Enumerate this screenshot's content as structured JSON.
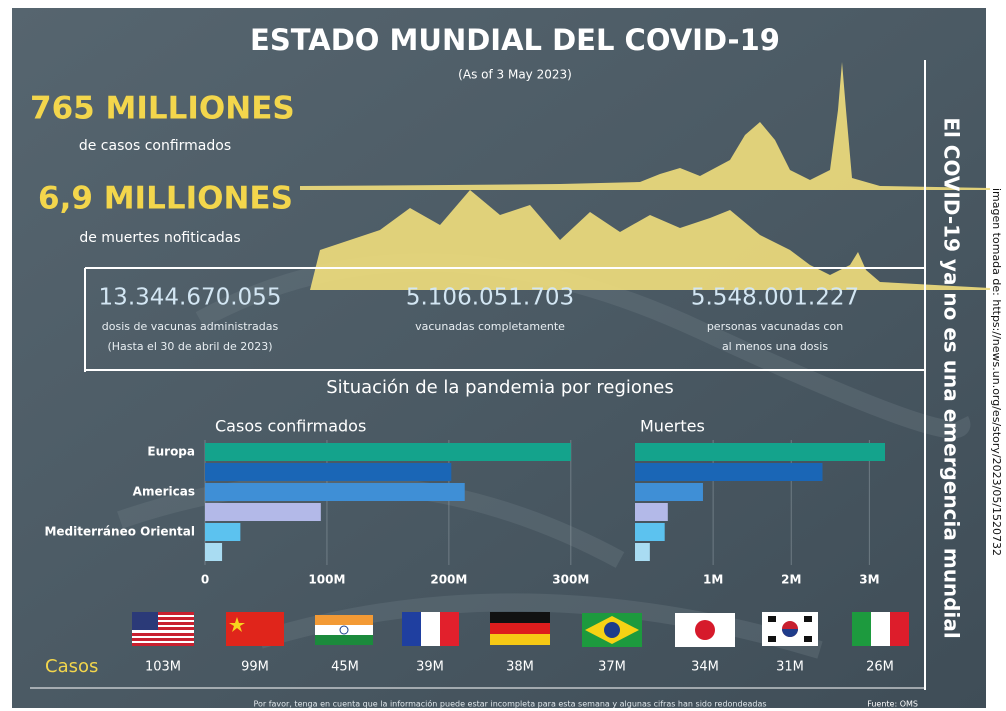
{
  "header": {
    "title": "ESTADO MUNDIAL DEL COVID-19",
    "date": "(As of 3 May 2023)"
  },
  "headline": [
    {
      "value": "765 MILLIONES",
      "label": "de casos confirmados"
    },
    {
      "value": "6,9 MILLIONES",
      "label": "de muertes nofiticadas"
    }
  ],
  "vaccines": [
    {
      "value": "13.344.670.055",
      "lines": [
        "dosis de vacunas administradas",
        "(Hasta el 30 de abril de 2023)"
      ]
    },
    {
      "value": "5.106.051.703",
      "lines": [
        "vacunadas completamente"
      ]
    },
    {
      "value": "5.548.001.227",
      "lines": [
        "personas vacunadas con",
        "al menos una dosis"
      ]
    }
  ],
  "section_title": "Situación de la pandemia por regiones",
  "chart_data": [
    {
      "type": "bar",
      "orientation": "horizontal",
      "title": "Casos confirmados",
      "categories": [
        "Europa",
        null,
        "Americas",
        null,
        "Mediterráneo Oriental",
        null
      ],
      "values": [
        300,
        202,
        213,
        95,
        29,
        14
      ],
      "colors": [
        "#14a38c",
        "#1a66b6",
        "#3f8fd6",
        "#b3b9e8",
        "#5cc2ef",
        "#a9dcf2"
      ],
      "xlim": [
        0,
        310
      ],
      "xticks": [
        0,
        {
          "value": 100,
          "label": "100M"
        },
        {
          "value": 200,
          "label": "200M"
        },
        {
          "value": 300,
          "label": "300M"
        }
      ],
      "grid": true
    },
    {
      "type": "bar",
      "orientation": "horizontal",
      "title": "Muertes",
      "values": [
        3.2,
        2.4,
        0.87,
        0.42,
        0.38,
        0.19
      ],
      "colors": [
        "#14a38c",
        "#1a66b6",
        "#3f8fd6",
        "#b3b9e8",
        "#5cc2ef",
        "#a9dcf2"
      ],
      "xlim": [
        0,
        3.2
      ],
      "xticks": [
        {
          "value": 1,
          "label": "1M"
        },
        {
          "value": 2,
          "label": "2M"
        },
        {
          "value": 3,
          "label": "3M"
        }
      ],
      "grid": true
    }
  ],
  "cases_by_country": {
    "label": "Casos",
    "values": [
      "103M",
      "99M",
      "45M",
      "39M",
      "38M",
      "37M",
      "34M",
      "31M",
      "26M"
    ]
  },
  "side_title": "El COVID-19 ya no es una emergencia mundial",
  "credit": "imagen tomada de: https://news.un.org/es/story/2023/05/1520732",
  "footer": {
    "note": "Por favor, tenga en cuenta que la información puede estar incompleta para esta semana y algunas cifras han sido redondeadas",
    "source": "Fuente: OMS"
  }
}
